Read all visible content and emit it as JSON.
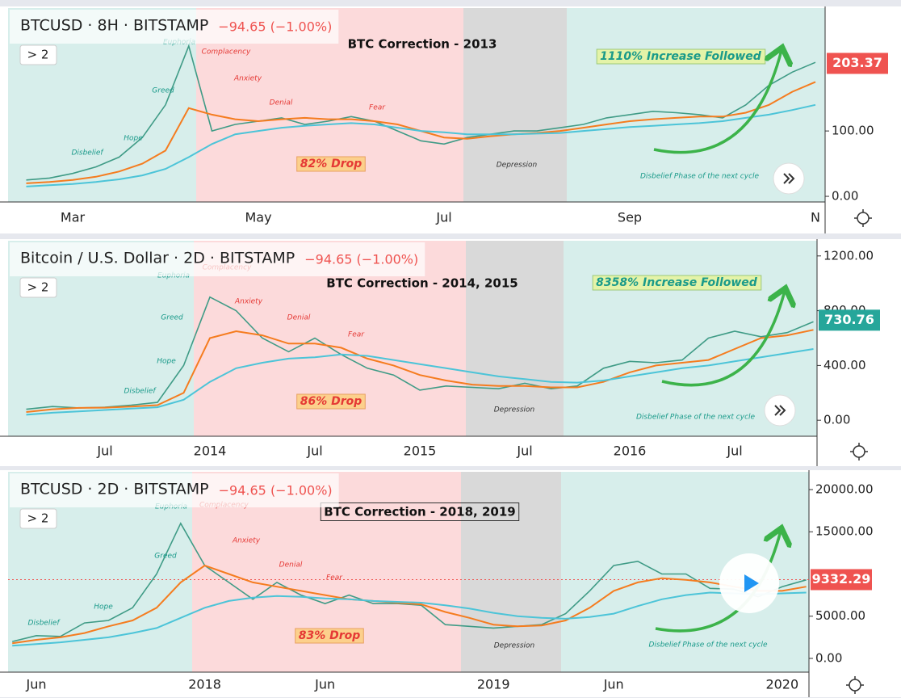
{
  "chart_data": [
    {
      "type": "line",
      "title": "BTCUSD · 8H · BITSTAMP",
      "change": "−94.65 (−1.00%)",
      "indicators": "> 2",
      "correction": "BTC Correction -  2013",
      "drop": "82% Drop",
      "increase": "1110% Increase Followed",
      "phase_labels": [
        "Euphoria",
        "Complacency",
        "Anxiety",
        "Denial",
        "Fear",
        "Greed",
        "Hope",
        "Disbelief",
        "Depression",
        "Disbelief Phase of the next cycle"
      ],
      "last_price": 203.37,
      "last_price_color": "#ef5350",
      "price_line": false,
      "categories": [
        null,
        null,
        "Mar",
        null,
        null,
        null,
        null,
        null,
        null,
        null,
        "May",
        null,
        null,
        null,
        null,
        null,
        null,
        null,
        "Jul",
        null,
        null,
        null,
        null,
        null,
        null,
        null,
        "Sep",
        null,
        null,
        null,
        null,
        null,
        null,
        null,
        "N"
      ],
      "series": [
        {
          "color": "#3f9b86",
          "values": [
            25,
            28,
            35,
            45,
            60,
            90,
            140,
            230,
            100,
            110,
            115,
            120,
            110,
            115,
            122,
            115,
            100,
            85,
            80,
            90,
            95,
            100,
            100,
            105,
            110,
            120,
            125,
            130,
            128,
            125,
            120,
            140,
            170,
            190,
            205
          ]
        },
        {
          "color": "#f57c1f",
          "values": [
            20,
            22,
            25,
            30,
            38,
            50,
            70,
            135,
            125,
            118,
            115,
            118,
            120,
            118,
            118,
            115,
            110,
            100,
            90,
            88,
            92,
            95,
            97,
            100,
            105,
            110,
            115,
            118,
            120,
            122,
            122,
            128,
            140,
            160,
            175
          ]
        },
        {
          "color": "#4cc4d8",
          "values": [
            15,
            17,
            19,
            22,
            26,
            32,
            42,
            60,
            80,
            95,
            100,
            105,
            108,
            110,
            112,
            110,
            105,
            100,
            98,
            95,
            95,
            95,
            96,
            97,
            100,
            103,
            106,
            108,
            110,
            112,
            115,
            120,
            125,
            132,
            140
          ]
        }
      ],
      "ylim": [
        -8.6,
        288
      ],
      "yticks": [
        {
          "value": 0,
          "label": "0.00"
        },
        {
          "value": 100,
          "label": "100.00"
        }
      ]
    },
    {
      "type": "line",
      "title": "Bitcoin / U.S. Dollar · 2D · BITSTAMP",
      "change": "−94.65 (−1.00%)",
      "indicators": "> 2",
      "correction": "BTC Correction - 2014, 2015",
      "drop": "86% Drop",
      "increase": "8358% Increase Followed",
      "phase_labels": [
        "Euphoria",
        "Complacency",
        "Anxiety",
        "Denial",
        "Fear",
        "Greed",
        "Hope",
        "Disbelief",
        "Depression",
        "Disbelief Phase of the next cycle"
      ],
      "last_price": 730.76,
      "last_price_color": "#26a69a",
      "price_line": false,
      "categories": [
        null,
        null,
        null,
        "Jul",
        null,
        null,
        null,
        "2014",
        null,
        null,
        null,
        "Jul",
        null,
        null,
        null,
        "2015",
        null,
        null,
        null,
        "Jul",
        null,
        null,
        null,
        "2016",
        null,
        null,
        null,
        "Jul",
        null,
        null,
        null
      ],
      "series": [
        {
          "color": "#3f9b86",
          "values": [
            80,
            100,
            90,
            95,
            110,
            130,
            400,
            900,
            800,
            600,
            500,
            600,
            480,
            380,
            330,
            220,
            250,
            240,
            230,
            270,
            230,
            250,
            380,
            430,
            420,
            440,
            600,
            650,
            610,
            640,
            720
          ]
        },
        {
          "color": "#f57c1f",
          "values": [
            60,
            80,
            90,
            92,
            100,
            110,
            200,
            600,
            650,
            620,
            560,
            560,
            530,
            450,
            400,
            330,
            290,
            260,
            250,
            250,
            240,
            240,
            280,
            350,
            400,
            420,
            440,
            520,
            600,
            620,
            660
          ]
        },
        {
          "color": "#4cc4d8",
          "values": [
            40,
            55,
            65,
            75,
            85,
            95,
            150,
            280,
            380,
            420,
            450,
            460,
            480,
            470,
            440,
            410,
            380,
            350,
            320,
            300,
            280,
            275,
            290,
            320,
            350,
            380,
            400,
            430,
            460,
            490,
            520
          ]
        }
      ],
      "ylim": [
        -117,
        1311
      ],
      "yticks": [
        {
          "value": 0,
          "label": "0.00"
        },
        {
          "value": 400,
          "label": "400.00"
        },
        {
          "value": 800,
          "label": "800.00"
        },
        {
          "value": 1200,
          "label": "1200.00"
        }
      ]
    },
    {
      "type": "line",
      "title": "BTCUSD · 2D · BITSTAMP",
      "change": "−94.65 (−1.00%)",
      "indicators": "> 2",
      "correction": "BTC Correction - 2018, 2019",
      "drop": "83% Drop",
      "phase_labels": [
        "Euphoria",
        "Complacency",
        "Anxiety",
        "Denial",
        "Fear",
        "Greed",
        "Hope",
        "Disbelief",
        "Depression",
        "Disbelief Phase of the next cycle"
      ],
      "last_price": 9332.29,
      "last_price_color": "#ef5350",
      "price_line": true,
      "categories": [
        null,
        "Jun",
        null,
        null,
        null,
        null,
        null,
        null,
        "2018",
        null,
        null,
        null,
        null,
        "Jun",
        null,
        null,
        null,
        null,
        null,
        null,
        "2019",
        null,
        null,
        null,
        null,
        "Jun",
        null,
        null,
        null,
        null,
        null,
        null,
        "2020",
        null
      ],
      "series": [
        {
          "color": "#3f9b86",
          "values": [
            2000,
            2700,
            2600,
            4200,
            4500,
            6000,
            10000,
            16000,
            11000,
            9000,
            7000,
            9000,
            7500,
            6500,
            7500,
            6500,
            6500,
            6300,
            4000,
            3800,
            3600,
            3800,
            4000,
            5300,
            8000,
            11000,
            11500,
            10000,
            10000,
            8300,
            8200,
            7300,
            8500,
            9300
          ]
        },
        {
          "color": "#f57c1f",
          "values": [
            1800,
            2200,
            2500,
            3000,
            3800,
            4500,
            6000,
            9000,
            11000,
            10000,
            9000,
            8500,
            8000,
            7500,
            7000,
            6800,
            6600,
            6400,
            5500,
            4800,
            4000,
            3800,
            3900,
            4500,
            6000,
            8000,
            9000,
            9500,
            9300,
            9000,
            8500,
            8000,
            8000,
            8500
          ]
        },
        {
          "color": "#4cc4d8",
          "values": [
            1500,
            1700,
            1900,
            2200,
            2500,
            3000,
            3600,
            4800,
            6000,
            6800,
            7200,
            7400,
            7300,
            7100,
            7000,
            6800,
            6700,
            6600,
            6300,
            5900,
            5400,
            5000,
            4800,
            4700,
            4900,
            5300,
            6200,
            7000,
            7500,
            7800,
            7700,
            7600,
            7700,
            7800
          ]
        }
      ],
      "ylim": [
        -1627,
        22105
      ],
      "yticks": [
        {
          "value": 0,
          "label": "0.00"
        },
        {
          "value": 5000,
          "label": "5000.00"
        },
        {
          "value": 15000,
          "label": "15000.00"
        },
        {
          "value": 20000,
          "label": "20000.00"
        }
      ]
    }
  ]
}
